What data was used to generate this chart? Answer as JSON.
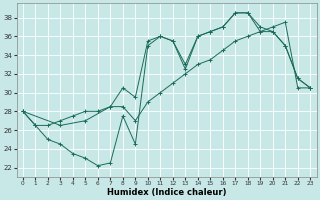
{
  "xlabel": "Humidex (Indice chaleur)",
  "bg_color": "#c8e8e8",
  "line_color": "#1a6b5a",
  "grid_color": "#ffffff",
  "xlim": [
    -0.5,
    23.5
  ],
  "ylim": [
    21,
    39.5
  ],
  "yticks": [
    22,
    24,
    26,
    28,
    30,
    32,
    34,
    36,
    38
  ],
  "xticks": [
    0,
    1,
    2,
    3,
    4,
    5,
    6,
    7,
    8,
    9,
    10,
    11,
    12,
    13,
    14,
    15,
    16,
    17,
    18,
    19,
    20,
    21,
    22,
    23
  ],
  "curve1_x": [
    0,
    1,
    2,
    3,
    4,
    5,
    6,
    7,
    8,
    9,
    10,
    11,
    12,
    13,
    14,
    15,
    16,
    17,
    18,
    19,
    20,
    21,
    22,
    23
  ],
  "curve1_y": [
    28,
    26.5,
    25.0,
    24.5,
    23.5,
    23.0,
    22.2,
    22.5,
    27.5,
    24.5,
    35.0,
    36.0,
    35.5,
    32.5,
    36.0,
    36.5,
    37.0,
    38.5,
    38.5,
    37.0,
    36.5,
    35.0,
    31.5,
    30.5
  ],
  "curve2_x": [
    0,
    3,
    5,
    7,
    8,
    9,
    10,
    11,
    12,
    13,
    14,
    15,
    16,
    17,
    18,
    19,
    20,
    21,
    22,
    23
  ],
  "curve2_y": [
    28,
    26.5,
    27.0,
    28.5,
    30.5,
    29.5,
    35.5,
    36.0,
    35.5,
    33.0,
    36.0,
    36.5,
    37.0,
    38.5,
    38.5,
    36.5,
    36.5,
    35.0,
    31.5,
    30.5
  ],
  "curve3_x": [
    0,
    1,
    2,
    3,
    4,
    5,
    6,
    7,
    8,
    9,
    10,
    11,
    12,
    13,
    14,
    15,
    16,
    17,
    18,
    19,
    20,
    21,
    22,
    23
  ],
  "curve3_y": [
    28,
    26.5,
    26.5,
    27.0,
    27.5,
    28.0,
    28.0,
    28.5,
    28.5,
    27.0,
    29.0,
    30.0,
    31.0,
    32.0,
    33.0,
    33.5,
    34.5,
    35.5,
    36.0,
    36.5,
    37.0,
    37.5,
    30.5,
    30.5
  ]
}
